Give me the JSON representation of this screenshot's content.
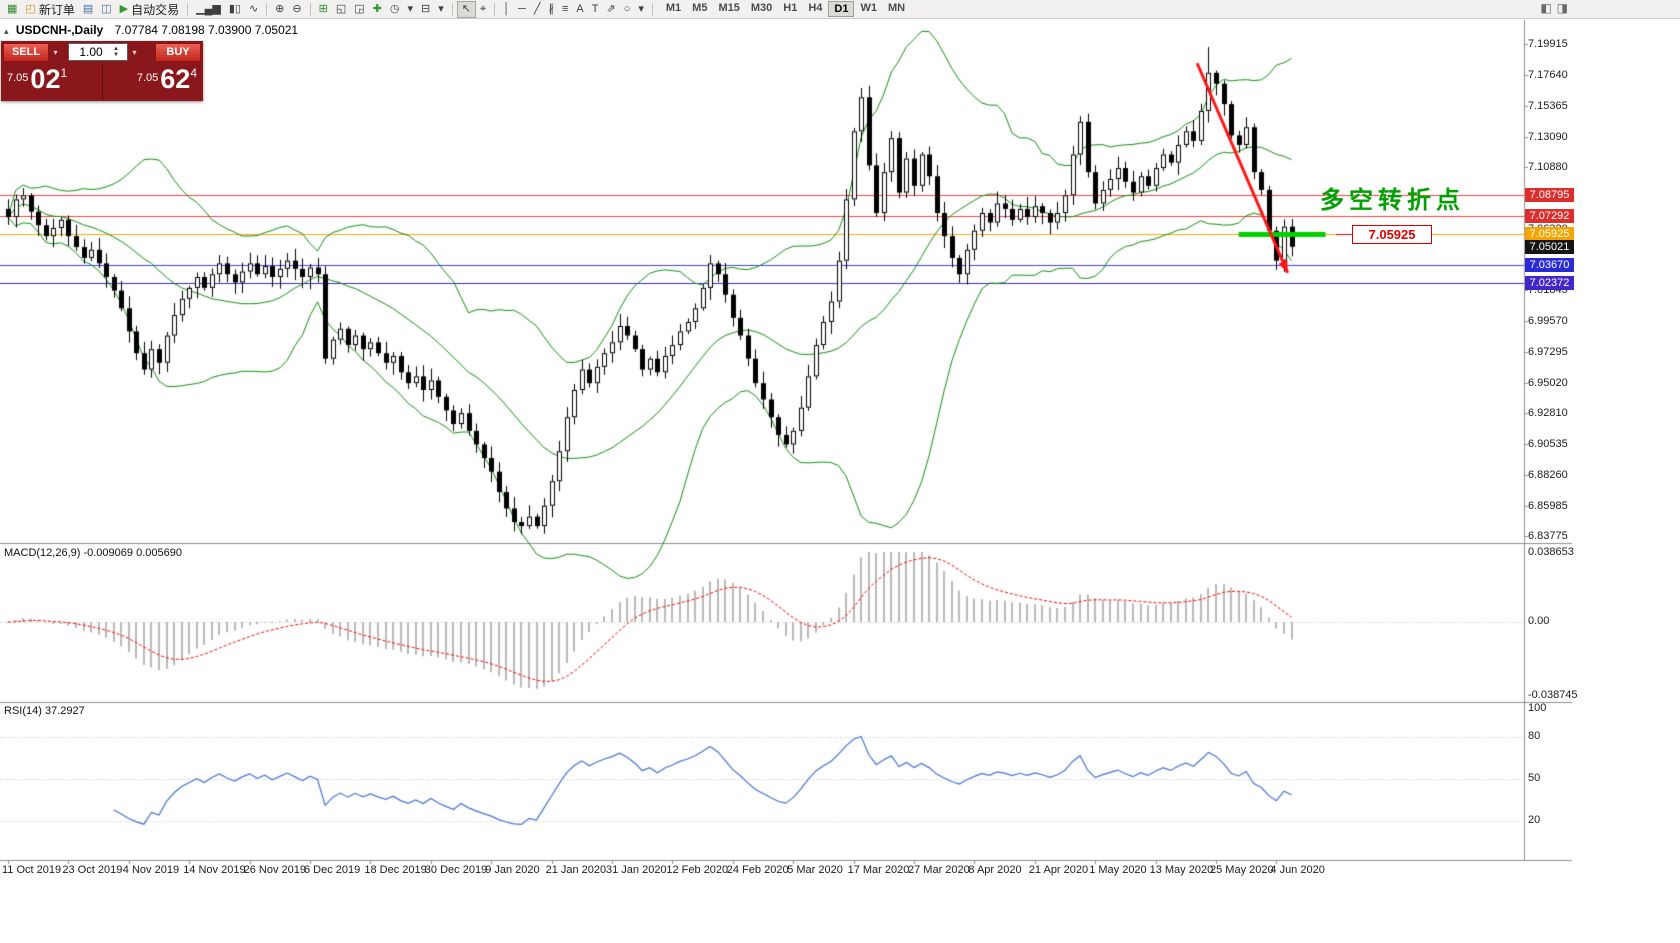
{
  "chart": {
    "title": "USDCNH-,Daily",
    "ohlc": "7.07784 7.08198 7.03900 7.05021",
    "annotation": "多空转折点",
    "price_tag": "7.05925"
  },
  "trade_panel": {
    "sell_label": "SELL",
    "buy_label": "BUY",
    "volume": "1.00",
    "bid_main": "7.05",
    "bid_big": "02",
    "bid_sup": "1",
    "ask_main": "7.05",
    "ask_big": "62",
    "ask_sup": "4"
  },
  "toolbar": {
    "items": [
      {
        "name": "chart-window-icon",
        "glyph": "▦",
        "color": "#2e8b2e"
      },
      {
        "name": "new-order-button",
        "glyph": "◰",
        "color": "#c99418",
        "label": "新订单"
      },
      {
        "name": "market-watch-icon",
        "glyph": "▤",
        "color": "#4a6fa5"
      },
      {
        "name": "data-window-icon",
        "glyph": "◫",
        "color": "#4a6fa5"
      },
      {
        "name": "auto-trading-button",
        "glyph": "▶",
        "color": "#2e9b2e",
        "label": "自动交易"
      },
      {
        "sep": true
      },
      {
        "name": "bar-chart-icon",
        "glyph": "▁▄▆"
      },
      {
        "name": "candlestick-chart-icon",
        "glyph": "▮▯"
      },
      {
        "name": "line-chart-icon",
        "glyph": "∿"
      },
      {
        "sep": true
      },
      {
        "name": "zoom-in-icon",
        "glyph": "⊕"
      },
      {
        "name": "zoom-out-icon",
        "glyph": "⊖"
      },
      {
        "sep": true
      },
      {
        "name": "tile-windows-icon",
        "glyph": "⊞",
        "color": "#2e8b2e"
      },
      {
        "name": "cascade-windows-icon",
        "glyph": "◱"
      },
      {
        "name": "arrange-windows-icon",
        "glyph": "◲"
      },
      {
        "name": "indicators-icon",
        "glyph": "✚",
        "color": "#2e9b2e"
      },
      {
        "name": "periods-icon",
        "glyph": "◷"
      },
      {
        "name": "periods-dropdown-icon",
        "glyph": "▾"
      },
      {
        "name": "templates-icon",
        "glyph": "⊟"
      },
      {
        "name": "templates-dropdown-icon",
        "glyph": "▾"
      },
      {
        "sep": true
      },
      {
        "name": "cursor-icon",
        "glyph": "↖",
        "active": true
      },
      {
        "name": "crosshair-icon",
        "glyph": "⌖"
      },
      {
        "sep": true
      },
      {
        "name": "vertical-line-icon",
        "glyph": "│"
      },
      {
        "name": "horizontal-line-icon",
        "glyph": "─"
      },
      {
        "name": "trendline-icon",
        "glyph": "╱"
      },
      {
        "name": "equidistant-channel-icon",
        "glyph": "∦"
      },
      {
        "name": "fibonacci-icon",
        "glyph": "≡"
      },
      {
        "name": "text-icon",
        "glyph": "A"
      },
      {
        "name": "text-label-icon",
        "glyph": "T"
      },
      {
        "name": "arrows-icon",
        "glyph": "⇗"
      },
      {
        "name": "shapes-icon",
        "glyph": "○"
      },
      {
        "name": "shapes-dropdown-icon",
        "glyph": "▾"
      },
      {
        "sep": true
      }
    ],
    "timeframes": [
      "M1",
      "M5",
      "M15",
      "M30",
      "H1",
      "H4",
      "D1",
      "W1",
      "MN"
    ],
    "active_timeframe": "D1",
    "right_items": [
      {
        "name": "chart-shift-icon",
        "glyph": "◧"
      },
      {
        "name": "auto-scroll-icon",
        "glyph": "◨"
      }
    ]
  },
  "price_axis": {
    "regular": [
      {
        "text": "7.19915",
        "price": 7.19915
      },
      {
        "text": "7.17640",
        "price": 7.1764
      },
      {
        "text": "7.15365",
        "price": 7.15365
      },
      {
        "text": "7.13090",
        "price": 7.1309
      },
      {
        "text": "7.10880",
        "price": 7.1088
      },
      {
        "text": "7.06320",
        "price": 7.0632
      },
      {
        "text": "7.01845",
        "price": 7.01845
      },
      {
        "text": "6.99570",
        "price": 6.9957
      },
      {
        "text": "6.97295",
        "price": 6.97295
      },
      {
        "text": "6.95020",
        "price": 6.9502
      },
      {
        "text": "6.92810",
        "price": 6.9281
      },
      {
        "text": "6.90535",
        "price": 6.90535
      },
      {
        "text": "6.88260",
        "price": 6.8826
      },
      {
        "text": "6.85985",
        "price": 6.85985
      },
      {
        "text": "6.83775",
        "price": 6.83775
      }
    ],
    "colored": [
      {
        "text": "7.08795",
        "price": 7.08795,
        "bg": "#dd2e2e",
        "fg": "#ffffff"
      },
      {
        "text": "7.07292",
        "price": 7.07292,
        "bg": "#dd2e2e",
        "fg": "#ffffff"
      },
      {
        "text": "7.05925",
        "price": 7.05925,
        "bg": "#f6a500",
        "fg": "#ffffff"
      },
      {
        "text": "7.05021",
        "price": 7.05021,
        "bg": "#141414",
        "fg": "#ffffff"
      },
      {
        "text": "7.03670",
        "price": 7.0367,
        "bg": "#2b2bd5",
        "fg": "#ffffff"
      },
      {
        "text": "7.02372",
        "price": 7.02372,
        "bg": "#4326c9",
        "fg": "#ffffff"
      }
    ]
  },
  "macd_panel": {
    "label": "MACD(12,26,9) -0.009069 0.005690",
    "axis": [
      "0.038653",
      "0.00",
      "-0.038745"
    ]
  },
  "rsi_panel": {
    "label": "RSI(14) 37.2927",
    "axis": [
      "100",
      "80",
      "50",
      "20"
    ]
  },
  "colors": {
    "bull": "#ffffff",
    "bear": "#000000",
    "outline": "#000000",
    "bands": "#0e8f0e",
    "macd_hist": "#b9b9b9",
    "macd_signal": "#ff0000",
    "rsi_line": "#4272d7",
    "level_dots": "#c4c4c4",
    "separator": "#8f8f8f",
    "annotation_green": "#00a000",
    "tag_red": "#e00000",
    "zone_green": "#00cf00",
    "arrow_red": "#ff1414"
  },
  "chart_data": {
    "type": "candlestick",
    "symbol": "USDCNH-",
    "timeframe": "Daily",
    "current_ohlc": {
      "open": "7.07784",
      "high": "7.08198",
      "low": "7.03900",
      "close": "7.05021"
    },
    "price_range": {
      "top": 7.19915,
      "bottom": 6.83775
    },
    "closes": [
      7.072,
      7.085,
      7.088,
      7.076,
      7.066,
      7.058,
      7.064,
      7.07,
      7.058,
      7.05,
      7.042,
      7.048,
      7.038,
      7.028,
      7.018,
      7.005,
      6.988,
      6.972,
      6.96,
      6.975,
      6.965,
      6.985,
      7.0,
      7.012,
      7.02,
      7.028,
      7.02,
      7.03,
      7.038,
      7.03,
      7.024,
      7.032,
      7.038,
      7.03,
      7.036,
      7.028,
      7.034,
      7.04,
      7.034,
      7.028,
      7.035,
      7.03,
      6.968,
      6.982,
      6.99,
      6.978,
      6.985,
      6.975,
      6.98,
      6.972,
      6.965,
      6.97,
      6.958,
      6.95,
      6.955,
      6.945,
      6.952,
      6.94,
      6.93,
      6.92,
      6.928,
      6.915,
      6.905,
      6.895,
      6.885,
      6.87,
      6.858,
      6.848,
      6.845,
      6.852,
      6.845,
      6.86,
      6.878,
      6.9,
      6.925,
      6.945,
      6.96,
      6.95,
      6.962,
      6.972,
      6.98,
      6.992,
      6.985,
      6.975,
      6.96,
      6.968,
      6.958,
      6.97,
      6.978,
      6.988,
      6.995,
      7.005,
      7.02,
      7.038,
      7.03,
      7.015,
      6.998,
      6.985,
      6.968,
      6.95,
      6.938,
      6.925,
      6.912,
      6.905,
      6.915,
      6.932,
      6.955,
      6.978,
      6.995,
      7.01,
      7.04,
      7.085,
      7.135,
      7.16,
      7.11,
      7.075,
      7.105,
      7.13,
      7.09,
      7.115,
      7.095,
      7.118,
      7.102,
      7.075,
      7.058,
      7.042,
      7.03,
      7.048,
      7.062,
      7.075,
      7.068,
      7.082,
      7.078,
      7.07,
      7.078,
      7.072,
      7.08,
      7.075,
      7.068,
      7.075,
      7.088,
      7.118,
      7.142,
      7.105,
      7.082,
      7.092,
      7.1,
      7.108,
      7.098,
      7.09,
      7.102,
      7.095,
      7.108,
      7.118,
      7.112,
      7.125,
      7.135,
      7.128,
      7.15,
      7.178,
      7.17,
      7.155,
      7.132,
      7.125,
      7.138,
      7.105,
      7.092,
      7.062,
      7.04,
      7.065,
      7.0502
    ],
    "bollinger": {
      "period": 20,
      "deviation": 2
    },
    "macd": {
      "fast": 12,
      "slow": 26,
      "signal": 9,
      "scale_max": 0.038653
    },
    "rsi": {
      "period": 14,
      "levels": [
        80,
        50,
        20
      ]
    },
    "hlines": [
      {
        "price": 7.08795,
        "color": "#ff4040"
      },
      {
        "price": 7.07292,
        "color": "#ff4040"
      },
      {
        "price": 7.05925,
        "color": "#ffaa00"
      },
      {
        "price": 7.0367,
        "color": "#4040ff"
      },
      {
        "price": 7.02372,
        "color": "#3c28c8"
      }
    ],
    "support_zone": {
      "price": 7.05925,
      "from_bar": 163,
      "to_bar": 174.5
    },
    "trend_arrow": {
      "from_bar": 157.5,
      "from_price": 7.185,
      "to_bar": 169.5,
      "to_price": 7.031
    },
    "time_ticks": [
      {
        "bar": 0,
        "label": "11 Oct 2019"
      },
      {
        "bar": 8,
        "label": "23 Oct 2019"
      },
      {
        "bar": 16,
        "label": "4 Nov 2019"
      },
      {
        "bar": 24,
        "label": "14 Nov 2019"
      },
      {
        "bar": 32,
        "label": "26 Nov 2019"
      },
      {
        "bar": 40,
        "label": "6 Dec 2019"
      },
      {
        "bar": 48,
        "label": "18 Dec 2019"
      },
      {
        "bar": 56,
        "label": "30 Dec 2019"
      },
      {
        "bar": 64,
        "label": "9 Jan 2020"
      },
      {
        "bar": 72,
        "label": "21 Jan 2020"
      },
      {
        "bar": 80,
        "label": "31 Jan 2020"
      },
      {
        "bar": 88,
        "label": "12 Feb 2020"
      },
      {
        "bar": 96,
        "label": "24 Feb 2020"
      },
      {
        "bar": 104,
        "label": "5 Mar 2020"
      },
      {
        "bar": 112,
        "label": "17 Mar 2020"
      },
      {
        "bar": 120,
        "label": "27 Mar 2020"
      },
      {
        "bar": 128,
        "label": "8 Apr 2020"
      },
      {
        "bar": 136,
        "label": "21 Apr 2020"
      },
      {
        "bar": 144,
        "label": "1 May 2020"
      },
      {
        "bar": 152,
        "label": "13 May 2020"
      },
      {
        "bar": 160,
        "label": "25 May 2020"
      },
      {
        "bar": 168,
        "label": "4 Jun 2020"
      }
    ]
  }
}
